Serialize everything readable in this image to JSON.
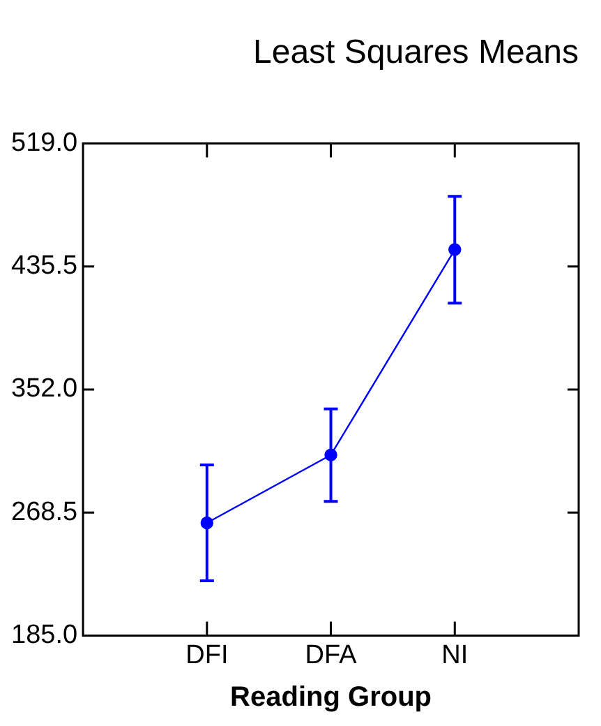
{
  "chart_data": {
    "type": "line",
    "title": "Least Squares Means",
    "xlabel": "Reading Group",
    "categories": [
      "DFI",
      "DFA",
      "NI"
    ],
    "series": [
      {
        "color": "#0000ff",
        "values": [
          261.5,
          307.6,
          447
        ],
        "errors": [
          [
            222.1,
            300.8
          ],
          [
            276,
            338.9
          ],
          [
            410.6,
            483.2
          ]
        ]
      }
    ],
    "ylim": [
      185,
      519
    ],
    "yticks": [
      {
        "value": 185,
        "label": "185.0"
      },
      {
        "value": 268.5,
        "label": "268.5"
      },
      {
        "value": 352,
        "label": "352.0"
      },
      {
        "value": 435.5,
        "label": "435.5"
      },
      {
        "value": 519,
        "label": "519.0"
      }
    ],
    "grid": false,
    "legend": false,
    "marker": "circle",
    "line_style": "solid"
  }
}
